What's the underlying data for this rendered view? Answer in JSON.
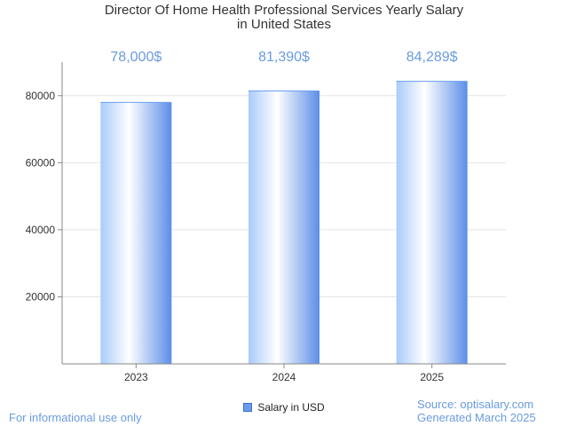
{
  "chart_data": {
    "type": "bar",
    "title_lines": [
      "Director Of Home Health Professional Services Yearly Salary",
      "in United States"
    ],
    "categories": [
      "2023",
      "2024",
      "2025"
    ],
    "series": [
      {
        "name": "Salary in USD",
        "values": [
          78000,
          81390,
          84289
        ]
      }
    ],
    "data_labels": [
      "78,000$",
      "81,390$",
      "84,289$"
    ],
    "y_ticks": [
      20000,
      40000,
      60000,
      80000
    ],
    "ylim": [
      0,
      90000
    ],
    "grid": true,
    "legend_position": "bottom-center"
  },
  "footer": {
    "disclaimer": "For informational use only",
    "source": "Source: optisalary.com",
    "generated": "Generated March 2025"
  },
  "colors": {
    "bar_edge": "#6a9ef0",
    "bar_light": "#ffffff",
    "bar_dark": "#5b8ee8",
    "label": "#6a9be0",
    "axis": "#888888",
    "grid": "#e4e4e4",
    "legend_swatch": "#6a9be8"
  }
}
